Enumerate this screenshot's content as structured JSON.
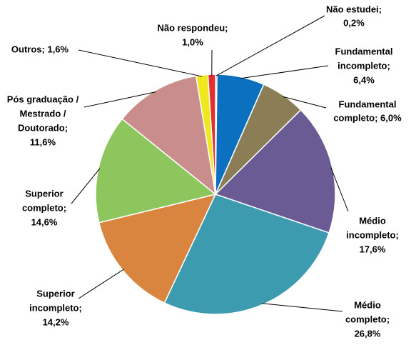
{
  "chart_data": {
    "type": "pie",
    "values": [
      0.2,
      6.4,
      6.0,
      17.6,
      26.8,
      14.2,
      14.6,
      11.6,
      1.6,
      1.0
    ],
    "value_labels": [
      [
        "Não estudei;",
        "0,2%"
      ],
      [
        "Fundamental",
        "incompleto;",
        "6,4%"
      ],
      [
        "Fundamental",
        "completo; 6,0%"
      ],
      [
        "Médio",
        "incompleto;",
        "17,6%"
      ],
      [
        "Médio",
        "completo;",
        "26,8%"
      ],
      [
        "Superior",
        "incompleto;",
        "14,2%"
      ],
      [
        "Superior",
        "completo;",
        "14,6%"
      ],
      [
        "Pós graduação /",
        "Mestrado /",
        "Doutorado;",
        "11,6%"
      ],
      [
        "Outros; 1,6%"
      ],
      [
        "Não respondeu;",
        "1,0%"
      ]
    ],
    "colors": [
      "#3b3b8f",
      "#0a70bf",
      "#8b7d56",
      "#6b5b95",
      "#3c9bae",
      "#d9843f",
      "#8cc65c",
      "#c98e8b",
      "#f0e81e",
      "#e52e2e"
    ]
  }
}
